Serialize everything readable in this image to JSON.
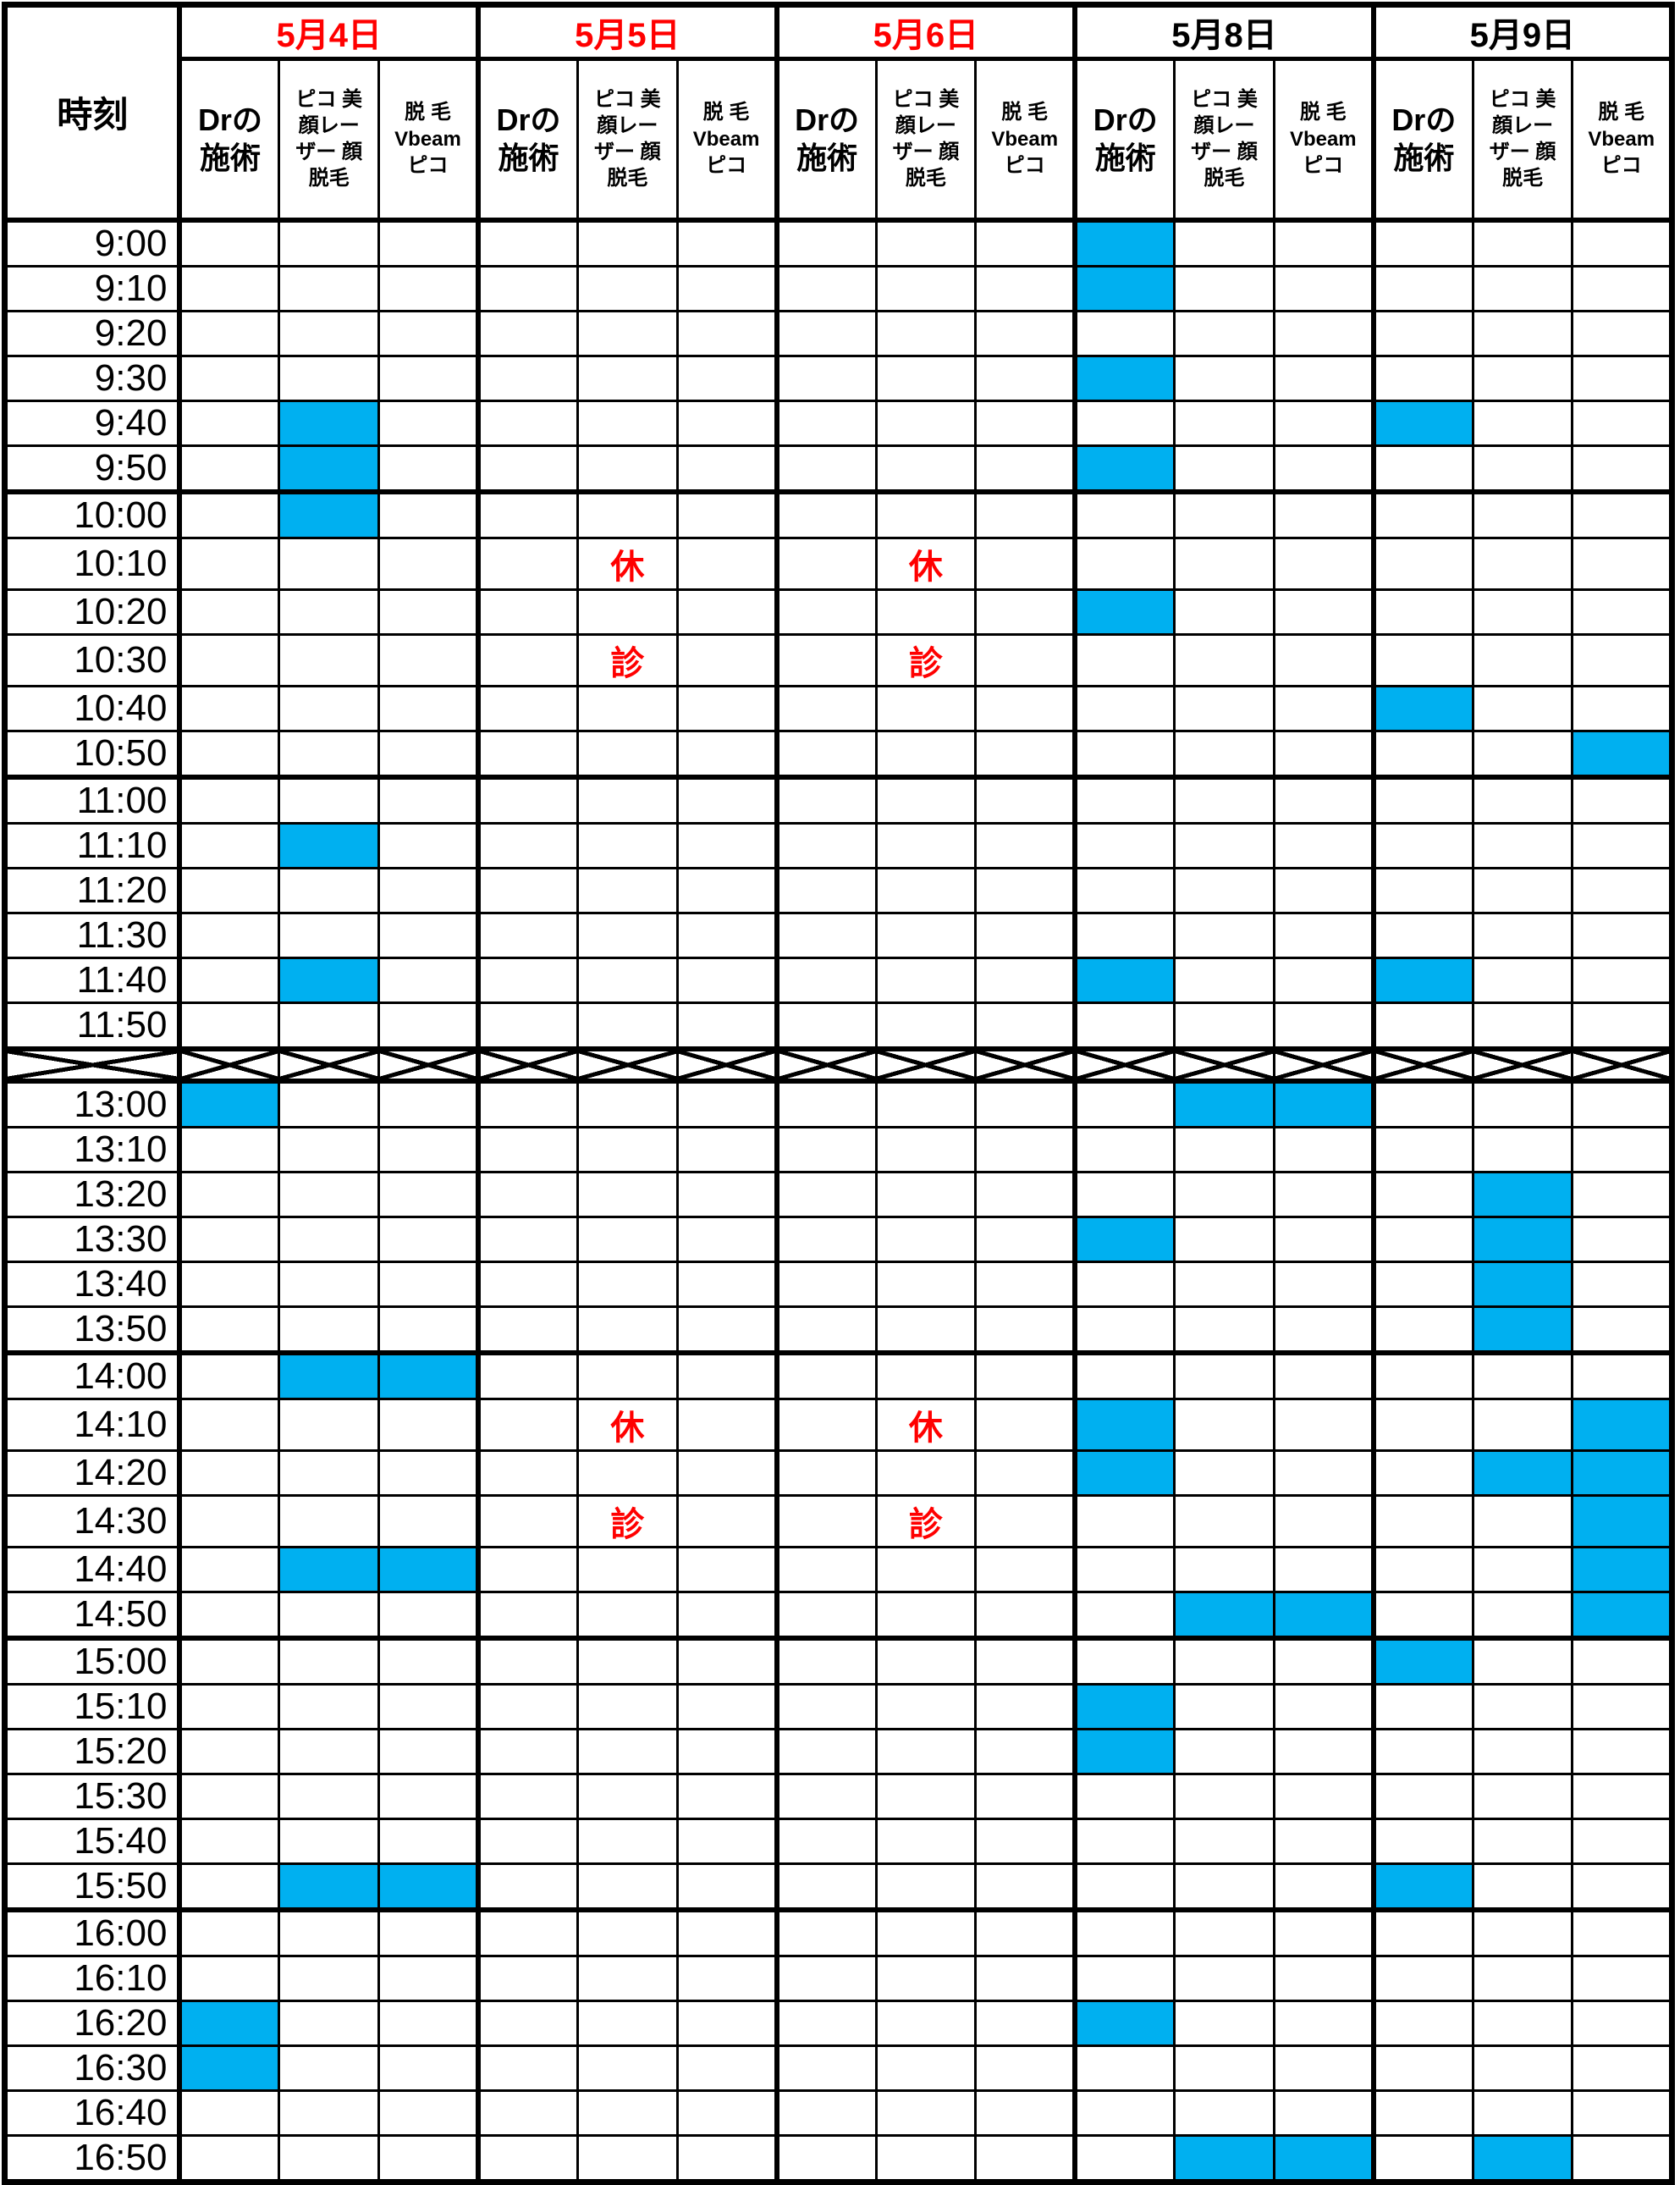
{
  "table": {
    "time_column_header": "時刻",
    "dates": [
      {
        "label": "5月4日",
        "red": true
      },
      {
        "label": "5月5日",
        "red": true
      },
      {
        "label": "5月6日",
        "red": true
      },
      {
        "label": "5月8日",
        "red": false
      },
      {
        "label": "5月9日",
        "red": false
      }
    ],
    "service_columns": [
      "Drの\n施術",
      "ピコ 美\n顔レー\nザー 顔\n脱毛",
      "脱 毛\nVbeam\nピコ"
    ],
    "legend": {
      "booked_fill": "#00B0F0",
      "closed_text_color": "#FF0000",
      "date_red_color": "#FF0000",
      "grid_color": "#000000",
      "closed_morning_label": "休診",
      "closed_afternoon_label": "休診"
    },
    "column_order_note": "cells indices 0-14 = [5/4 Dr,5/4 ピコ,5/4 脱毛,5/5 Dr,5/5 ピコ,5/5 脱毛,5/6 Dr,5/6 ピコ,5/6 脱毛,5/8 Dr,5/8 ピコ,5/8 脱毛,5/9 Dr,5/9 ピコ,5/9 脱毛]",
    "rows": [
      {
        "time": "9:00",
        "cells": [
          "",
          "",
          "",
          "",
          "",
          "",
          "",
          "",
          "",
          "B",
          "",
          "",
          "",
          "",
          ""
        ]
      },
      {
        "time": "9:10",
        "cells": [
          "",
          "",
          "",
          "",
          "",
          "",
          "",
          "",
          "",
          "B",
          "",
          "",
          "",
          "",
          ""
        ]
      },
      {
        "time": "9:20",
        "cells": [
          "",
          "",
          "",
          "",
          "",
          "",
          "",
          "",
          "",
          "",
          "",
          "",
          "",
          "",
          ""
        ]
      },
      {
        "time": "9:30",
        "cells": [
          "",
          "",
          "",
          "",
          "",
          "",
          "",
          "",
          "",
          "B",
          "",
          "",
          "",
          "",
          ""
        ]
      },
      {
        "time": "9:40",
        "cells": [
          "",
          "B",
          "",
          "",
          "",
          "",
          "",
          "",
          "",
          "",
          "",
          "",
          "B",
          "",
          ""
        ]
      },
      {
        "time": "9:50",
        "cells": [
          "",
          "B",
          "",
          "",
          "",
          "",
          "",
          "",
          "",
          "B",
          "",
          "",
          "",
          "",
          ""
        ]
      },
      {
        "time": "10:00",
        "cells": [
          "",
          "B",
          "",
          "",
          "",
          "",
          "",
          "",
          "",
          "",
          "",
          "",
          "",
          "",
          ""
        ]
      },
      {
        "time": "10:10",
        "cells": [
          "",
          "",
          "",
          "",
          "休",
          "",
          "",
          "休",
          "",
          "",
          "",
          "",
          "",
          "",
          ""
        ]
      },
      {
        "time": "10:20",
        "cells": [
          "",
          "",
          "",
          "",
          "",
          "",
          "",
          "",
          "",
          "B",
          "",
          "",
          "",
          "",
          ""
        ]
      },
      {
        "time": "10:30",
        "cells": [
          "",
          "",
          "",
          "",
          "診",
          "",
          "",
          "診",
          "",
          "",
          "",
          "",
          "",
          "",
          ""
        ]
      },
      {
        "time": "10:40",
        "cells": [
          "",
          "",
          "",
          "",
          "",
          "",
          "",
          "",
          "",
          "",
          "",
          "",
          "B",
          "",
          ""
        ]
      },
      {
        "time": "10:50",
        "cells": [
          "",
          "",
          "",
          "",
          "",
          "",
          "",
          "",
          "",
          "",
          "",
          "",
          "",
          "",
          "B"
        ]
      },
      {
        "time": "11:00",
        "cells": [
          "",
          "",
          "",
          "",
          "",
          "",
          "",
          "",
          "",
          "",
          "",
          "",
          "",
          "",
          ""
        ]
      },
      {
        "time": "11:10",
        "cells": [
          "",
          "B",
          "",
          "",
          "",
          "",
          "",
          "",
          "",
          "",
          "",
          "",
          "",
          "",
          ""
        ]
      },
      {
        "time": "11:20",
        "cells": [
          "",
          "",
          "",
          "",
          "",
          "",
          "",
          "",
          "",
          "",
          "",
          "",
          "",
          "",
          ""
        ]
      },
      {
        "time": "11:30",
        "cells": [
          "",
          "",
          "",
          "",
          "",
          "",
          "",
          "",
          "",
          "",
          "",
          "",
          "",
          "",
          ""
        ]
      },
      {
        "time": "11:40",
        "cells": [
          "",
          "B",
          "",
          "",
          "",
          "",
          "",
          "",
          "",
          "B",
          "",
          "",
          "B",
          "",
          ""
        ]
      },
      {
        "time": "11:50",
        "cells": [
          "",
          "",
          "",
          "",
          "",
          "",
          "",
          "",
          "",
          "",
          "",
          "",
          "",
          "",
          ""
        ]
      },
      {
        "type": "break"
      },
      {
        "time": "13:00",
        "cells": [
          "B",
          "",
          "",
          "",
          "",
          "",
          "",
          "",
          "",
          "",
          "B",
          "B",
          "",
          "",
          ""
        ]
      },
      {
        "time": "13:10",
        "cells": [
          "",
          "",
          "",
          "",
          "",
          "",
          "",
          "",
          "",
          "",
          "",
          "",
          "",
          "",
          ""
        ]
      },
      {
        "time": "13:20",
        "cells": [
          "",
          "",
          "",
          "",
          "",
          "",
          "",
          "",
          "",
          "",
          "",
          "",
          "",
          "B",
          ""
        ]
      },
      {
        "time": "13:30",
        "cells": [
          "",
          "",
          "",
          "",
          "",
          "",
          "",
          "",
          "",
          "B",
          "",
          "",
          "",
          "B",
          ""
        ]
      },
      {
        "time": "13:40",
        "cells": [
          "",
          "",
          "",
          "",
          "",
          "",
          "",
          "",
          "",
          "",
          "",
          "",
          "",
          "B",
          ""
        ]
      },
      {
        "time": "13:50",
        "cells": [
          "",
          "",
          "",
          "",
          "",
          "",
          "",
          "",
          "",
          "",
          "",
          "",
          "",
          "B",
          ""
        ]
      },
      {
        "time": "14:00",
        "cells": [
          "",
          "B",
          "B",
          "",
          "",
          "",
          "",
          "",
          "",
          "",
          "",
          "",
          "",
          "",
          ""
        ]
      },
      {
        "time": "14:10",
        "cells": [
          "",
          "",
          "",
          "",
          "休",
          "",
          "",
          "休",
          "",
          "B",
          "",
          "",
          "",
          "",
          "B"
        ]
      },
      {
        "time": "14:20",
        "cells": [
          "",
          "",
          "",
          "",
          "",
          "",
          "",
          "",
          "",
          "B",
          "",
          "",
          "",
          "B",
          "B"
        ]
      },
      {
        "time": "14:30",
        "cells": [
          "",
          "",
          "",
          "",
          "診",
          "",
          "",
          "診",
          "",
          "",
          "",
          "",
          "",
          "",
          "B"
        ]
      },
      {
        "time": "14:40",
        "cells": [
          "",
          "B",
          "B",
          "",
          "",
          "",
          "",
          "",
          "",
          "",
          "",
          "",
          "",
          "",
          "B"
        ]
      },
      {
        "time": "14:50",
        "cells": [
          "",
          "",
          "",
          "",
          "",
          "",
          "",
          "",
          "",
          "",
          "B",
          "B",
          "",
          "",
          "B"
        ]
      },
      {
        "time": "15:00",
        "cells": [
          "",
          "",
          "",
          "",
          "",
          "",
          "",
          "",
          "",
          "",
          "",
          "",
          "B",
          "",
          ""
        ]
      },
      {
        "time": "15:10",
        "cells": [
          "",
          "",
          "",
          "",
          "",
          "",
          "",
          "",
          "",
          "B",
          "",
          "",
          "",
          "",
          ""
        ]
      },
      {
        "time": "15:20",
        "cells": [
          "",
          "",
          "",
          "",
          "",
          "",
          "",
          "",
          "",
          "B",
          "",
          "",
          "",
          "",
          ""
        ]
      },
      {
        "time": "15:30",
        "cells": [
          "",
          "",
          "",
          "",
          "",
          "",
          "",
          "",
          "",
          "",
          "",
          "",
          "",
          "",
          ""
        ]
      },
      {
        "time": "15:40",
        "cells": [
          "",
          "",
          "",
          "",
          "",
          "",
          "",
          "",
          "",
          "",
          "",
          "",
          "",
          "",
          ""
        ]
      },
      {
        "time": "15:50",
        "cells": [
          "",
          "B",
          "B",
          "",
          "",
          "",
          "",
          "",
          "",
          "",
          "",
          "",
          "B",
          "",
          ""
        ]
      },
      {
        "time": "16:00",
        "cells": [
          "",
          "",
          "",
          "",
          "",
          "",
          "",
          "",
          "",
          "",
          "",
          "",
          "",
          "",
          ""
        ]
      },
      {
        "time": "16:10",
        "cells": [
          "",
          "",
          "",
          "",
          "",
          "",
          "",
          "",
          "",
          "",
          "",
          "",
          "",
          "",
          ""
        ]
      },
      {
        "time": "16:20",
        "cells": [
          "B",
          "",
          "",
          "",
          "",
          "",
          "",
          "",
          "",
          "B",
          "",
          "",
          "",
          "",
          ""
        ]
      },
      {
        "time": "16:30",
        "cells": [
          "B",
          "",
          "",
          "",
          "",
          "",
          "",
          "",
          "",
          "",
          "",
          "",
          "",
          "",
          ""
        ]
      },
      {
        "time": "16:40",
        "cells": [
          "",
          "",
          "",
          "",
          "",
          "",
          "",
          "",
          "",
          "",
          "",
          "",
          "",
          "",
          ""
        ]
      },
      {
        "time": "16:50",
        "cells": [
          "",
          "",
          "",
          "",
          "",
          "",
          "",
          "",
          "",
          "",
          "B",
          "B",
          "",
          "B",
          ""
        ]
      }
    ]
  }
}
